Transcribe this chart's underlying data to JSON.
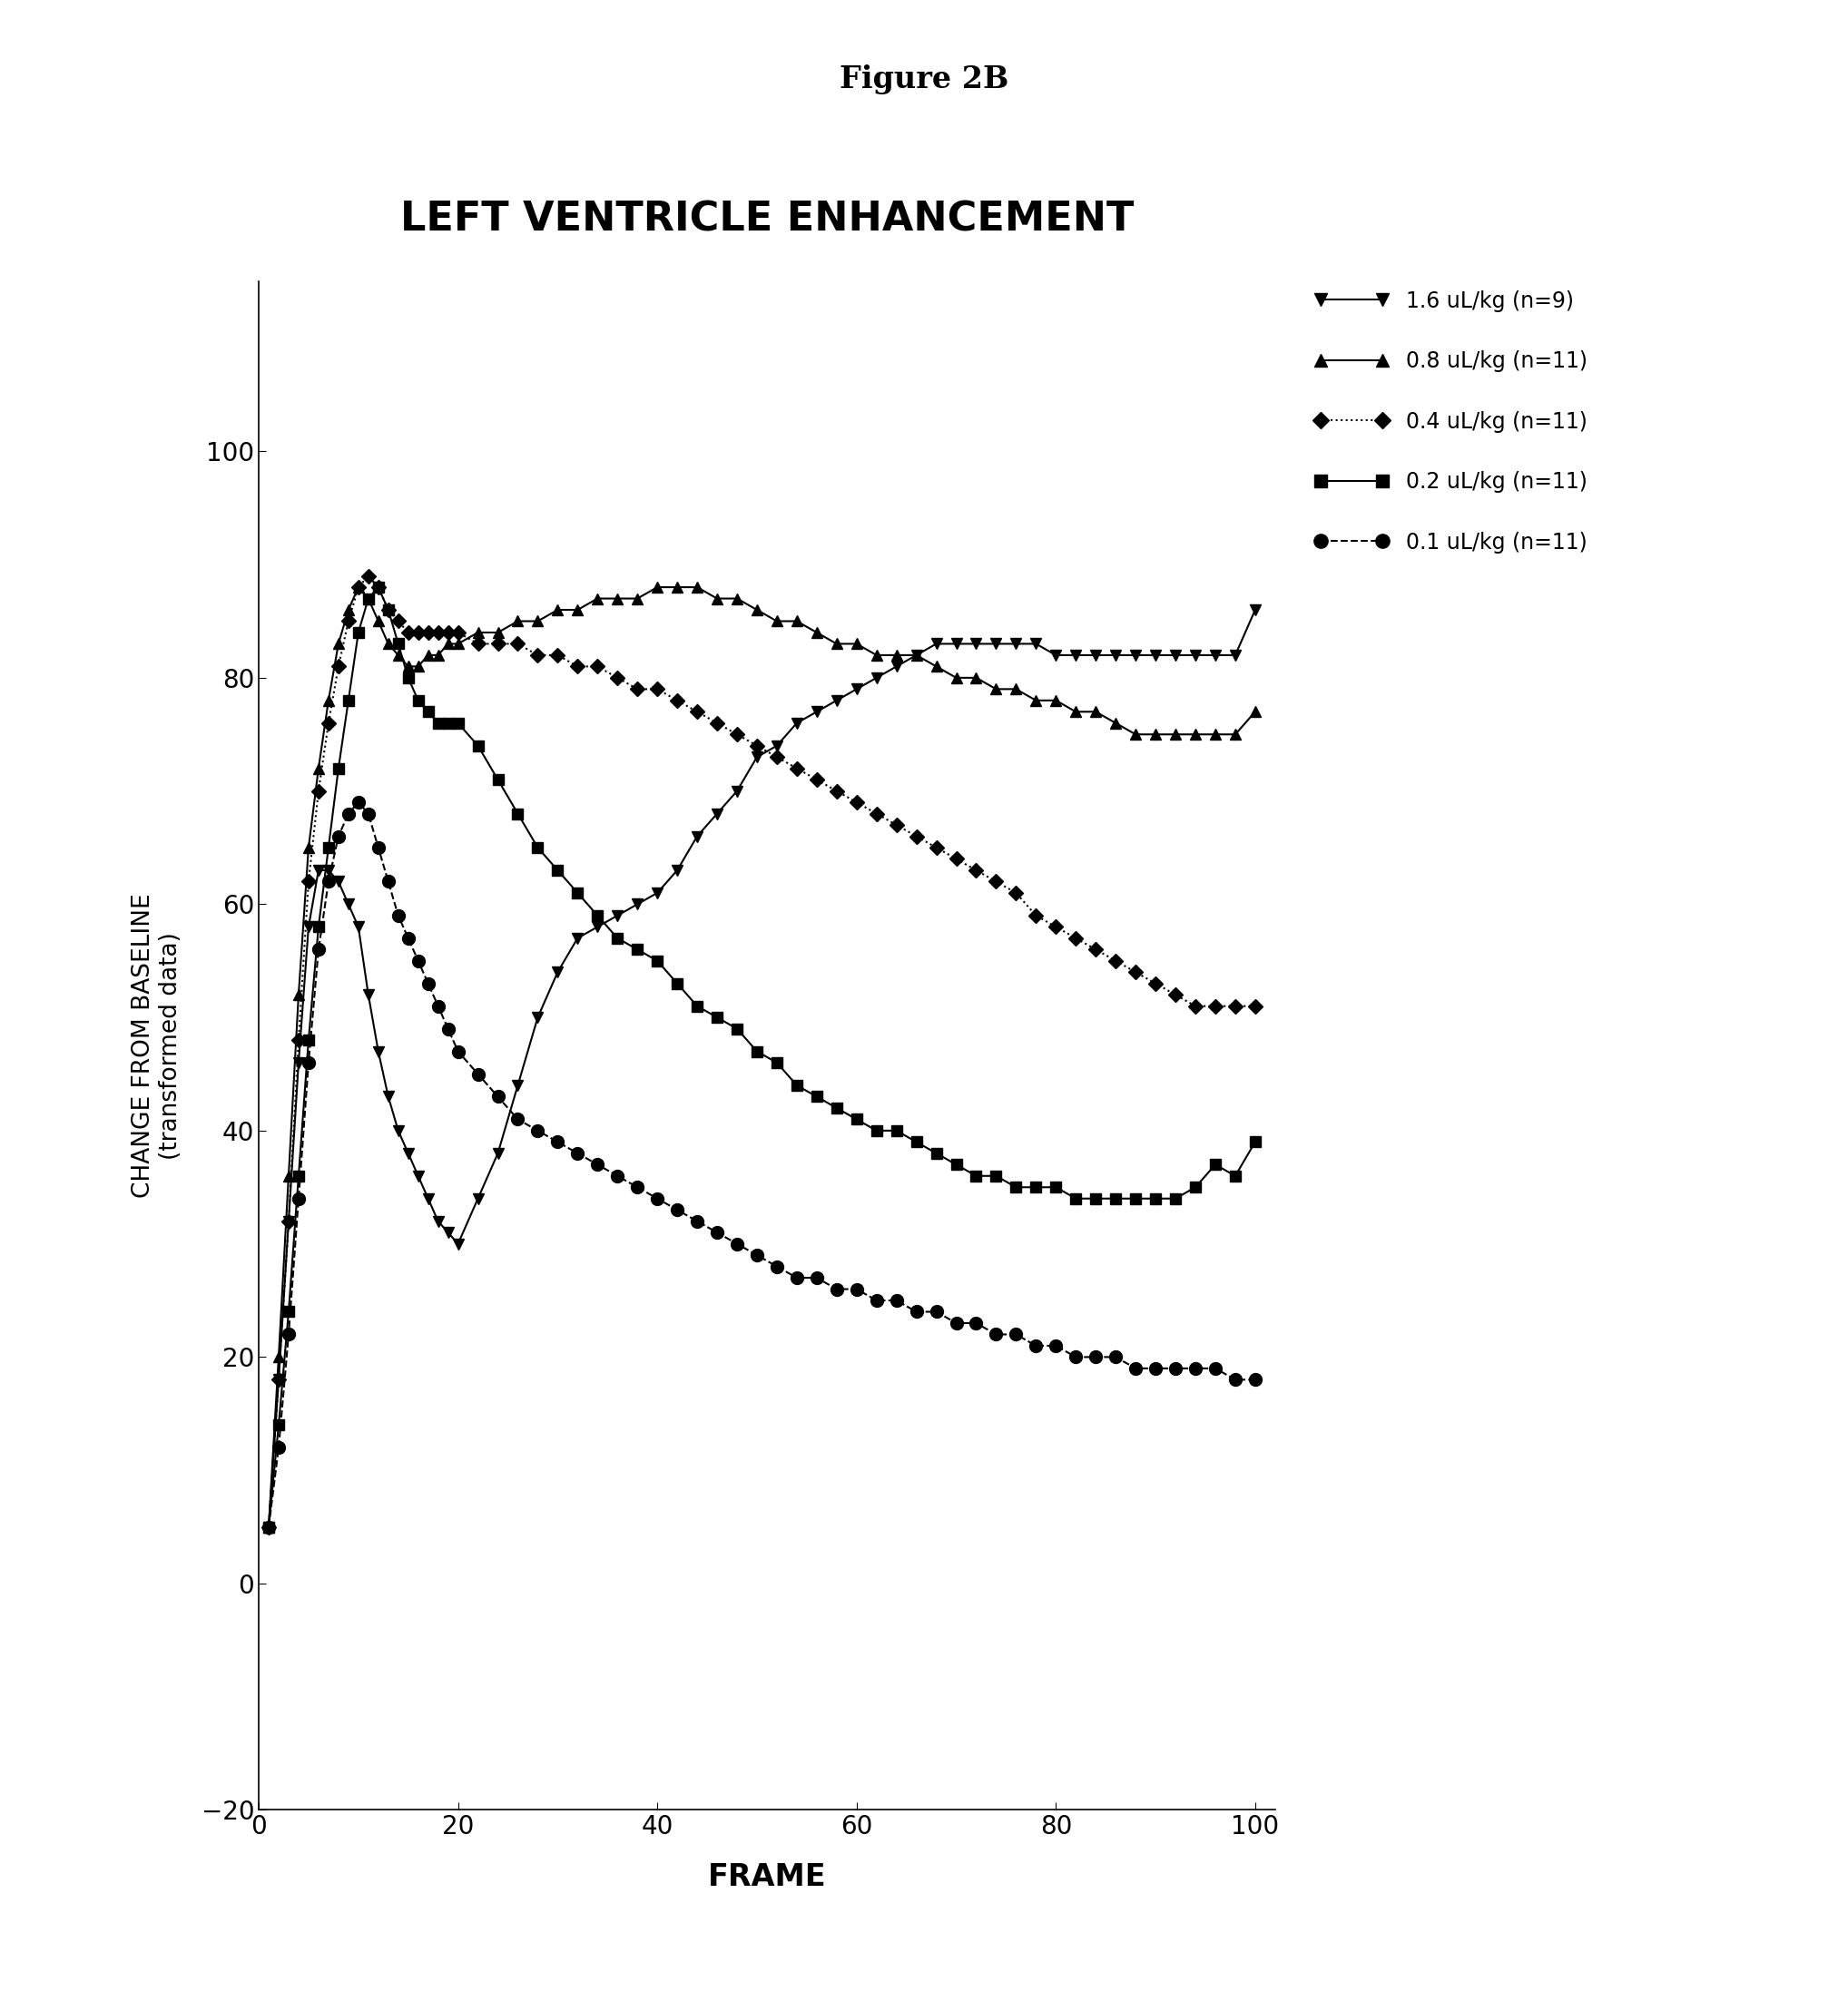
{
  "title_top": "Figure 2B",
  "title_main": "LEFT VENTRICLE ENHANCEMENT",
  "xlabel": "FRAME",
  "ylabel_line1": "CHANGE FROM BASELINE",
  "ylabel_line2": "(transformed data)",
  "xlim": [
    0,
    102
  ],
  "ylim": [
    -20,
    115
  ],
  "yticks": [
    -20,
    0,
    20,
    40,
    60,
    80,
    100
  ],
  "xticks": [
    0,
    20,
    40,
    60,
    80,
    100
  ],
  "background_color": "#ffffff",
  "series": [
    {
      "label": "1.6 uL/kg (n=9)",
      "marker": "v",
      "linestyle": "-",
      "color": "#000000",
      "x": [
        1,
        2,
        3,
        4,
        5,
        6,
        7,
        8,
        9,
        10,
        11,
        12,
        13,
        14,
        15,
        16,
        17,
        18,
        19,
        20,
        22,
        24,
        26,
        28,
        30,
        32,
        34,
        36,
        38,
        40,
        42,
        44,
        46,
        48,
        50,
        52,
        54,
        56,
        58,
        60,
        62,
        64,
        66,
        68,
        70,
        72,
        74,
        76,
        78,
        80,
        82,
        84,
        86,
        88,
        90,
        92,
        94,
        96,
        98,
        100
      ],
      "y": [
        5,
        18,
        32,
        46,
        58,
        63,
        63,
        62,
        60,
        58,
        52,
        47,
        43,
        40,
        38,
        36,
        34,
        32,
        31,
        30,
        34,
        38,
        44,
        50,
        54,
        57,
        58,
        59,
        60,
        61,
        63,
        66,
        68,
        70,
        73,
        74,
        76,
        77,
        78,
        79,
        80,
        81,
        82,
        83,
        83,
        83,
        83,
        83,
        83,
        82,
        82,
        82,
        82,
        82,
        82,
        82,
        82,
        82,
        82,
        86
      ]
    },
    {
      "label": "0.8 uL/kg (n=11)",
      "marker": "^",
      "linestyle": "-",
      "color": "#000000",
      "x": [
        1,
        2,
        3,
        4,
        5,
        6,
        7,
        8,
        9,
        10,
        11,
        12,
        13,
        14,
        15,
        16,
        17,
        18,
        19,
        20,
        22,
        24,
        26,
        28,
        30,
        32,
        34,
        36,
        38,
        40,
        42,
        44,
        46,
        48,
        50,
        52,
        54,
        56,
        58,
        60,
        62,
        64,
        66,
        68,
        70,
        72,
        74,
        76,
        78,
        80,
        82,
        84,
        86,
        88,
        90,
        92,
        94,
        96,
        98,
        100
      ],
      "y": [
        5,
        20,
        36,
        52,
        65,
        72,
        78,
        83,
        86,
        88,
        87,
        85,
        83,
        82,
        81,
        81,
        82,
        82,
        83,
        83,
        84,
        84,
        85,
        85,
        86,
        86,
        87,
        87,
        87,
        88,
        88,
        88,
        87,
        87,
        86,
        85,
        85,
        84,
        83,
        83,
        82,
        82,
        82,
        81,
        80,
        80,
        79,
        79,
        78,
        78,
        77,
        77,
        76,
        75,
        75,
        75,
        75,
        75,
        75,
        77
      ]
    },
    {
      "label": "0.4 uL/kg (n=11)",
      "marker": "D",
      "linestyle": ":",
      "color": "#000000",
      "x": [
        1,
        2,
        3,
        4,
        5,
        6,
        7,
        8,
        9,
        10,
        11,
        12,
        13,
        14,
        15,
        16,
        17,
        18,
        19,
        20,
        22,
        24,
        26,
        28,
        30,
        32,
        34,
        36,
        38,
        40,
        42,
        44,
        46,
        48,
        50,
        52,
        54,
        56,
        58,
        60,
        62,
        64,
        66,
        68,
        70,
        72,
        74,
        76,
        78,
        80,
        82,
        84,
        86,
        88,
        90,
        92,
        94,
        96,
        98,
        100
      ],
      "y": [
        5,
        18,
        32,
        48,
        62,
        70,
        76,
        81,
        85,
        88,
        89,
        88,
        86,
        85,
        84,
        84,
        84,
        84,
        84,
        84,
        83,
        83,
        83,
        82,
        82,
        81,
        81,
        80,
        79,
        79,
        78,
        77,
        76,
        75,
        74,
        73,
        72,
        71,
        70,
        69,
        68,
        67,
        66,
        65,
        64,
        63,
        62,
        61,
        59,
        58,
        57,
        56,
        55,
        54,
        53,
        52,
        51,
        51,
        51,
        51
      ]
    },
    {
      "label": "0.2 uL/kg (n=11)",
      "marker": "s",
      "linestyle": "-",
      "color": "#000000",
      "x": [
        1,
        2,
        3,
        4,
        5,
        6,
        7,
        8,
        9,
        10,
        11,
        12,
        13,
        14,
        15,
        16,
        17,
        18,
        19,
        20,
        22,
        24,
        26,
        28,
        30,
        32,
        34,
        36,
        38,
        40,
        42,
        44,
        46,
        48,
        50,
        52,
        54,
        56,
        58,
        60,
        62,
        64,
        66,
        68,
        70,
        72,
        74,
        76,
        78,
        80,
        82,
        84,
        86,
        88,
        90,
        92,
        94,
        96,
        98,
        100
      ],
      "y": [
        5,
        14,
        24,
        36,
        48,
        58,
        65,
        72,
        78,
        84,
        87,
        88,
        86,
        83,
        80,
        78,
        77,
        76,
        76,
        76,
        74,
        71,
        68,
        65,
        63,
        61,
        59,
        57,
        56,
        55,
        53,
        51,
        50,
        49,
        47,
        46,
        44,
        43,
        42,
        41,
        40,
        40,
        39,
        38,
        37,
        36,
        36,
        35,
        35,
        35,
        34,
        34,
        34,
        34,
        34,
        34,
        35,
        37,
        36,
        39
      ]
    },
    {
      "label": "0.1 uL/kg (n=11)",
      "marker": "o",
      "linestyle": "--",
      "color": "#000000",
      "x": [
        1,
        2,
        3,
        4,
        5,
        6,
        7,
        8,
        9,
        10,
        11,
        12,
        13,
        14,
        15,
        16,
        17,
        18,
        19,
        20,
        22,
        24,
        26,
        28,
        30,
        32,
        34,
        36,
        38,
        40,
        42,
        44,
        46,
        48,
        50,
        52,
        54,
        56,
        58,
        60,
        62,
        64,
        66,
        68,
        70,
        72,
        74,
        76,
        78,
        80,
        82,
        84,
        86,
        88,
        90,
        92,
        94,
        96,
        98,
        100
      ],
      "y": [
        5,
        12,
        22,
        34,
        46,
        56,
        62,
        66,
        68,
        69,
        68,
        65,
        62,
        59,
        57,
        55,
        53,
        51,
        49,
        47,
        45,
        43,
        41,
        40,
        39,
        38,
        37,
        36,
        35,
        34,
        33,
        32,
        31,
        30,
        29,
        28,
        27,
        27,
        26,
        26,
        25,
        25,
        24,
        24,
        23,
        23,
        22,
        22,
        21,
        21,
        20,
        20,
        20,
        19,
        19,
        19,
        19,
        19,
        18,
        18
      ]
    }
  ]
}
